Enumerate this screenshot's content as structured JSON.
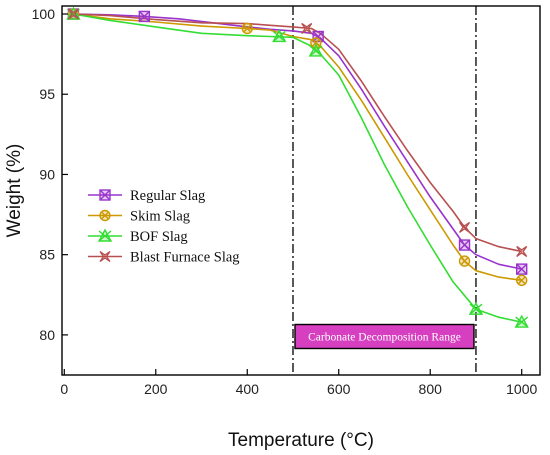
{
  "chart_data": {
    "type": "line",
    "xlabel": "Temperature (°C)",
    "ylabel": "Weight (%)",
    "xlim": [
      -5,
      1040
    ],
    "ylim": [
      77.5,
      100.5
    ],
    "xticks": [
      0,
      200,
      400,
      600,
      800,
      1000
    ],
    "yticks": [
      80,
      85,
      90,
      95,
      100
    ],
    "grid": false,
    "legend_position": "center-left",
    "vlines": [
      500,
      900
    ],
    "annotation": {
      "text": "Carbonate Decomposition Range",
      "x_start": 500,
      "x_end": 900,
      "y_center": 79.9,
      "fill": "#d63fbf"
    },
    "series": [
      {
        "name": "Regular Slag",
        "color": "#9933cc",
        "marker": "square-x",
        "points": [
          [
            20,
            100
          ],
          [
            100,
            99.95
          ],
          [
            175,
            99.85
          ],
          [
            250,
            99.7
          ],
          [
            325,
            99.45
          ],
          [
            400,
            99.2
          ],
          [
            450,
            99.05
          ],
          [
            500,
            98.95
          ],
          [
            540,
            98.8
          ],
          [
            560,
            98.5
          ],
          [
            600,
            97.4
          ],
          [
            650,
            95.3
          ],
          [
            700,
            93.0
          ],
          [
            750,
            90.8
          ],
          [
            800,
            88.6
          ],
          [
            850,
            86.6
          ],
          [
            875,
            85.6
          ],
          [
            900,
            85.0
          ],
          [
            950,
            84.4
          ],
          [
            1000,
            84.1
          ]
        ],
        "markers": [
          [
            20,
            100
          ],
          [
            175,
            99.85
          ],
          [
            555,
            98.6
          ],
          [
            875,
            85.6
          ],
          [
            1000,
            84.1
          ]
        ]
      },
      {
        "name": "Skim Slag",
        "color": "#cc9900",
        "marker": "circle-x",
        "points": [
          [
            20,
            100
          ],
          [
            100,
            99.7
          ],
          [
            200,
            99.5
          ],
          [
            300,
            99.25
          ],
          [
            400,
            99.1
          ],
          [
            450,
            99.0
          ],
          [
            500,
            98.6
          ],
          [
            540,
            98.4
          ],
          [
            560,
            98.0
          ],
          [
            600,
            96.7
          ],
          [
            650,
            94.6
          ],
          [
            700,
            92.3
          ],
          [
            750,
            90.0
          ],
          [
            800,
            87.8
          ],
          [
            850,
            85.6
          ],
          [
            875,
            84.6
          ],
          [
            900,
            84.0
          ],
          [
            950,
            83.6
          ],
          [
            1000,
            83.4
          ]
        ],
        "markers": [
          [
            20,
            100
          ],
          [
            400,
            99.1
          ],
          [
            550,
            98.2
          ],
          [
            875,
            84.6
          ],
          [
            1000,
            83.4
          ]
        ]
      },
      {
        "name": "BOF Slag",
        "color": "#33dd33",
        "marker": "triangle-x",
        "points": [
          [
            20,
            100
          ],
          [
            100,
            99.6
          ],
          [
            200,
            99.2
          ],
          [
            300,
            98.8
          ],
          [
            400,
            98.65
          ],
          [
            450,
            98.6
          ],
          [
            500,
            98.55
          ],
          [
            540,
            98.0
          ],
          [
            560,
            97.5
          ],
          [
            600,
            96.2
          ],
          [
            650,
            93.5
          ],
          [
            700,
            90.6
          ],
          [
            750,
            88.0
          ],
          [
            800,
            85.6
          ],
          [
            850,
            83.3
          ],
          [
            900,
            81.6
          ],
          [
            950,
            81.1
          ],
          [
            1000,
            80.8
          ]
        ],
        "markers": [
          [
            20,
            100
          ],
          [
            470,
            98.6
          ],
          [
            550,
            97.7
          ],
          [
            900,
            81.6
          ],
          [
            1000,
            80.8
          ]
        ]
      },
      {
        "name": "Blast Furnace Slag",
        "color": "#b85050",
        "marker": "star-x",
        "points": [
          [
            20,
            100
          ],
          [
            100,
            99.9
          ],
          [
            200,
            99.65
          ],
          [
            300,
            99.45
          ],
          [
            400,
            99.4
          ],
          [
            450,
            99.3
          ],
          [
            500,
            99.2
          ],
          [
            540,
            99.1
          ],
          [
            560,
            98.8
          ],
          [
            600,
            97.8
          ],
          [
            650,
            95.8
          ],
          [
            700,
            93.6
          ],
          [
            750,
            91.5
          ],
          [
            800,
            89.5
          ],
          [
            850,
            87.7
          ],
          [
            875,
            86.7
          ],
          [
            900,
            86.0
          ],
          [
            950,
            85.5
          ],
          [
            1000,
            85.2
          ]
        ],
        "markers": [
          [
            20,
            100
          ],
          [
            530,
            99.1
          ],
          [
            875,
            86.7
          ],
          [
            1000,
            85.2
          ]
        ]
      }
    ]
  }
}
